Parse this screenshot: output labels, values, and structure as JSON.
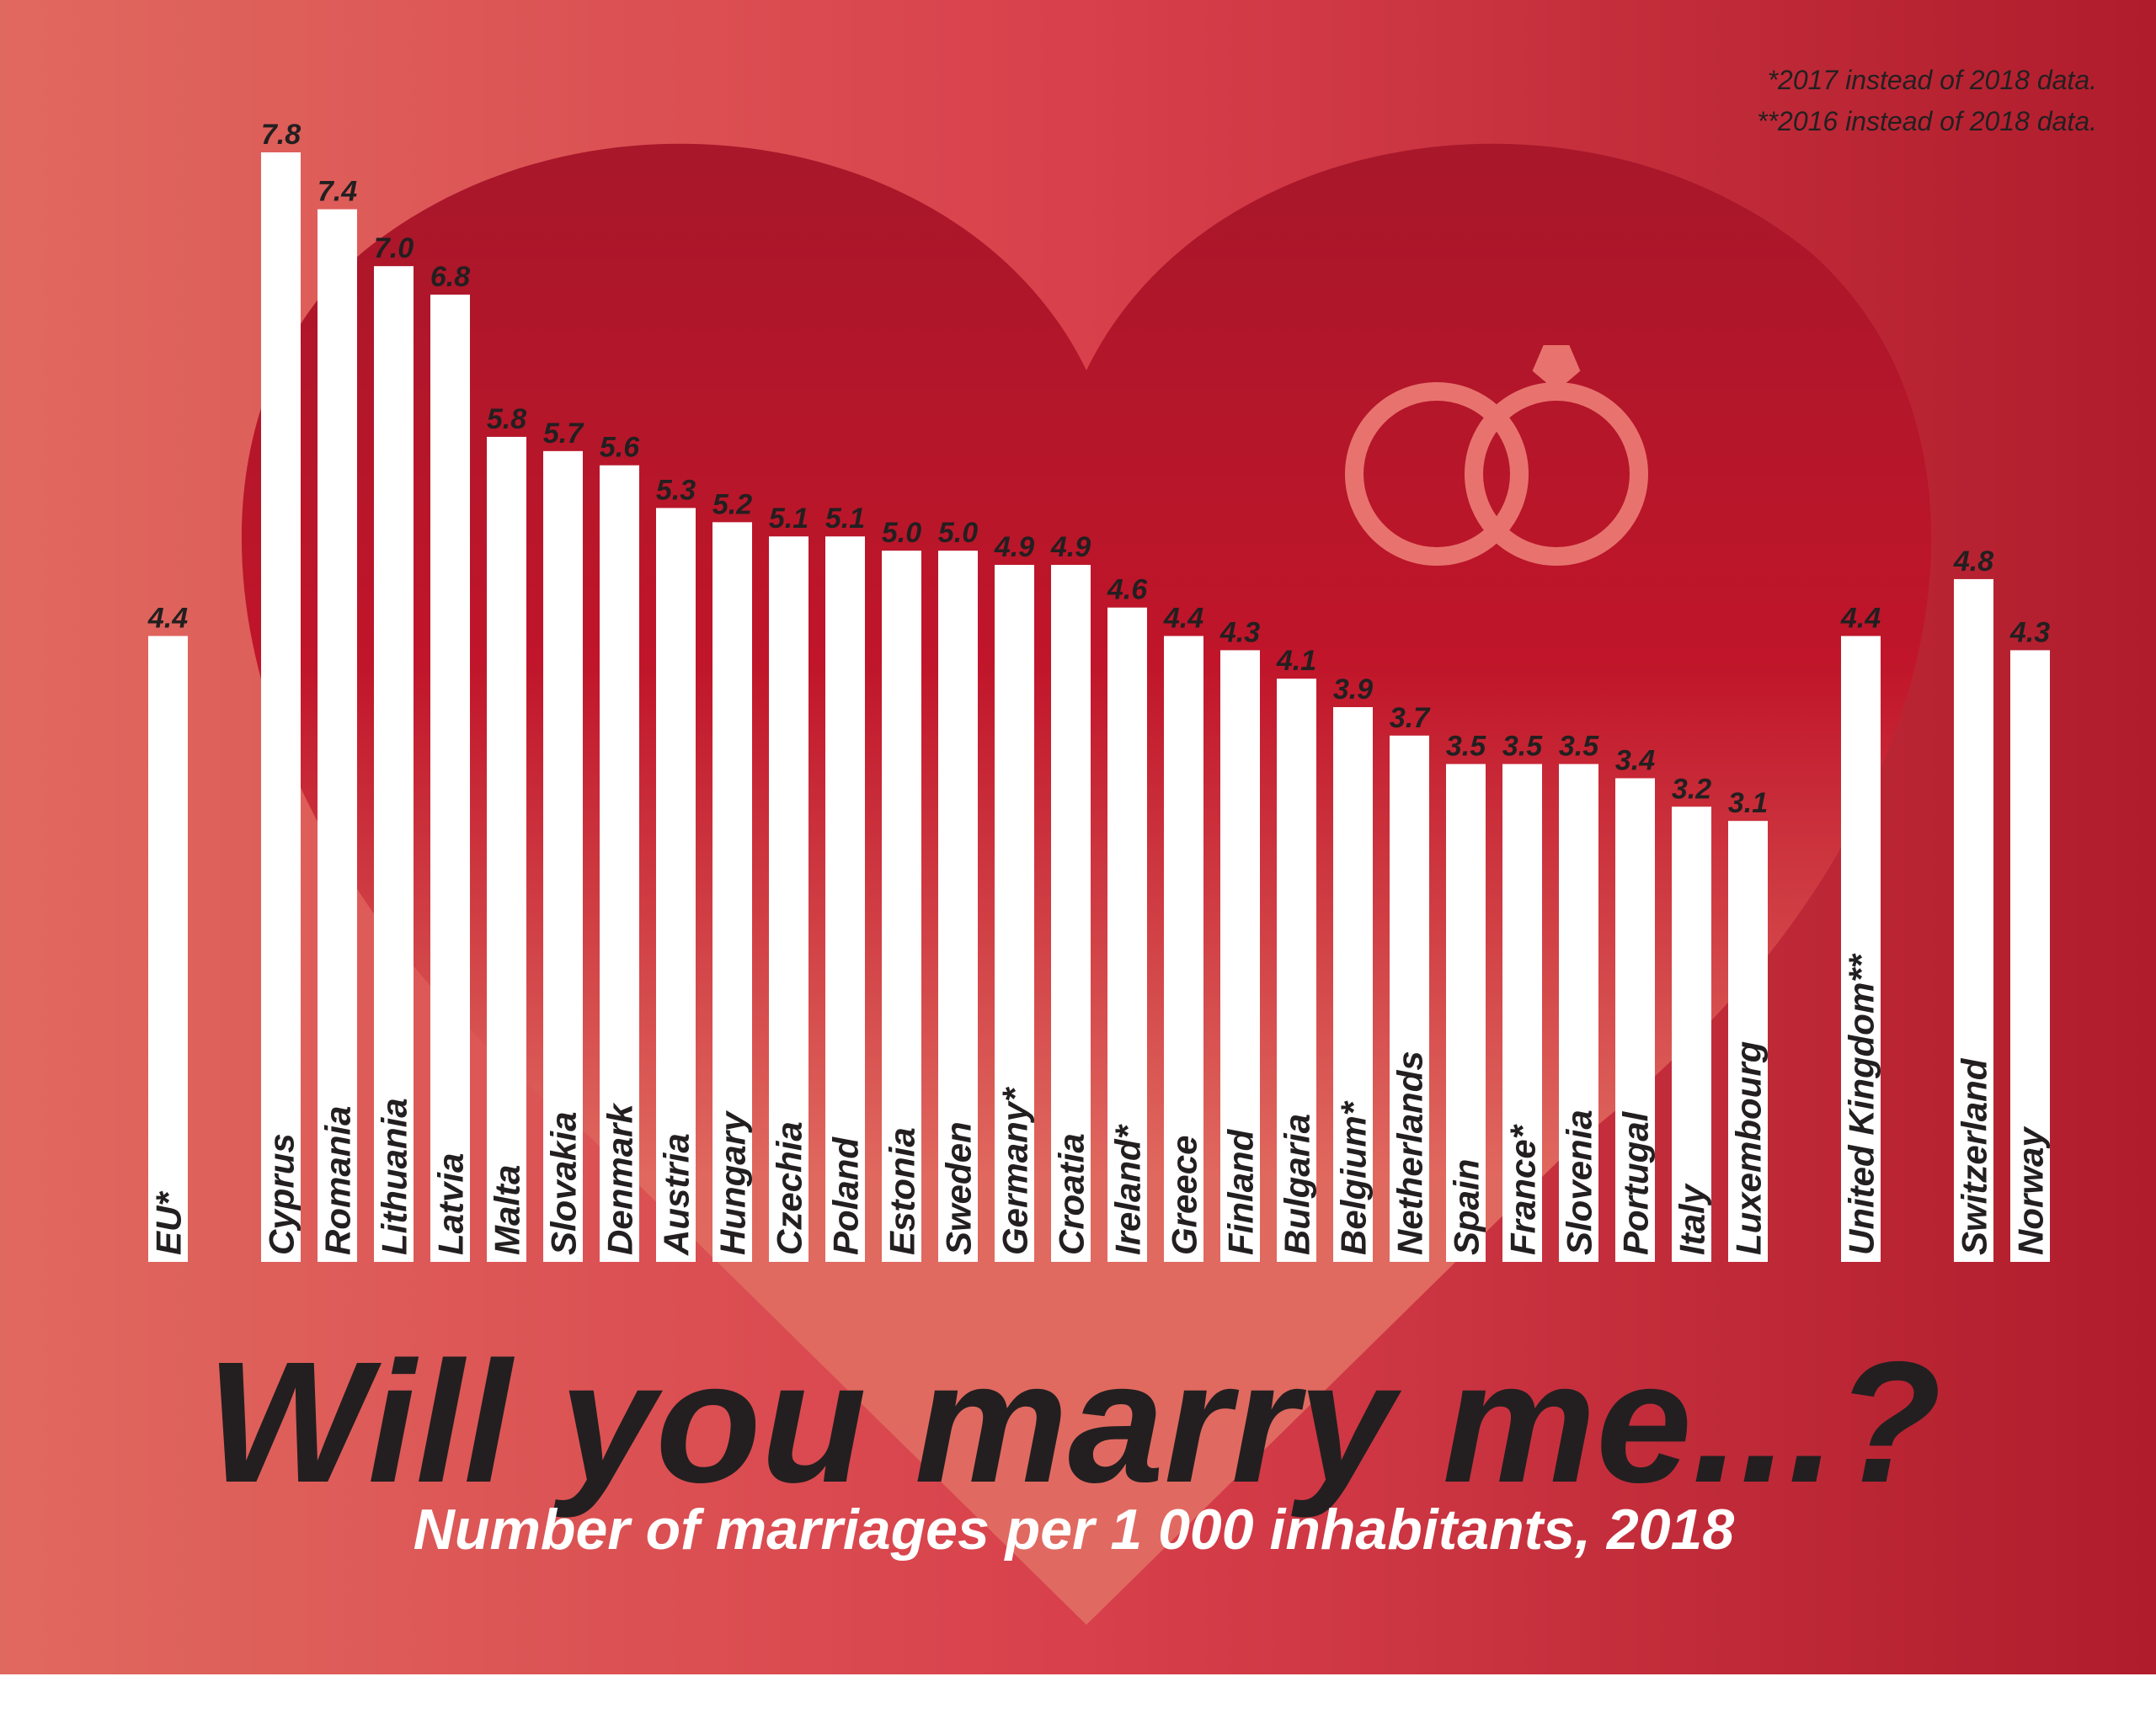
{
  "chart_data": {
    "type": "bar",
    "title": "Will you marry me...?",
    "subtitle": "Number of marriages per 1 000 inhabitants, 2018",
    "notes": [
      "*2017 instead of 2018 data.",
      "**2016 instead of 2018 data."
    ],
    "categories": [
      "EU*",
      "Cyprus",
      "Romania",
      "Lithuania",
      "Latvia",
      "Malta",
      "Slovakia",
      "Denmark",
      "Austria",
      "Hungary",
      "Czechia",
      "Poland",
      "Estonia",
      "Sweden",
      "Germany*",
      "Croatia",
      "Ireland*",
      "Greece",
      "Finland",
      "Bulgaria",
      "Belgium*",
      "Netherlands",
      "Spain",
      "France*",
      "Slovenia",
      "Portugal",
      "Italy",
      "Luxembourg",
      "United Kingdom**",
      "Switzerland",
      "Norway"
    ],
    "values": [
      4.4,
      7.8,
      7.4,
      7.0,
      6.8,
      5.8,
      5.7,
      5.6,
      5.3,
      5.2,
      5.1,
      5.1,
      5.0,
      5.0,
      4.9,
      4.9,
      4.6,
      4.4,
      4.3,
      4.1,
      3.9,
      3.7,
      3.5,
      3.5,
      3.5,
      3.4,
      3.2,
      3.1,
      4.4,
      4.8,
      4.3
    ],
    "value_labels": [
      "4.4",
      "7.8",
      "7.4",
      "7.0",
      "6.8",
      "5.8",
      "5.7",
      "5.6",
      "5.3",
      "5.2",
      "5.1",
      "5.1",
      "5.0",
      "5.0",
      "4.9",
      "4.9",
      "4.6",
      "4.4",
      "4.3",
      "4.1",
      "3.9",
      "3.7",
      "3.5",
      "3.5",
      "3.5",
      "3.4",
      "3.2",
      "3.1",
      "4.4",
      "4.8",
      "4.3"
    ],
    "color": "#ffffff"
  }
}
